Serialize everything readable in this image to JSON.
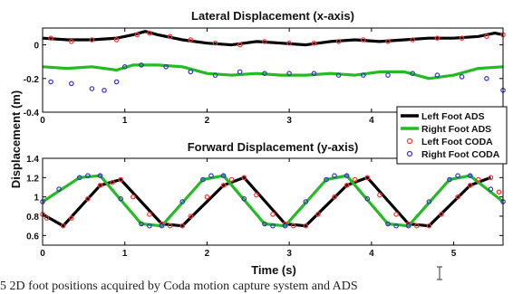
{
  "chart_data": [
    {
      "type": "line",
      "title": "Lateral Displacement (x-axis)",
      "xlabel": "",
      "ylabel": "Displacement (m)",
      "xlim": [
        0,
        5.6
      ],
      "ylim": [
        -0.4,
        0.1
      ],
      "x_ticks": [
        "0",
        "1",
        "2",
        "3",
        "4"
      ],
      "y_ticks": [
        "0",
        "-0.2",
        "-0.4"
      ],
      "grid": false,
      "series": [
        {
          "name": "Left Foot ADS",
          "color": "#000000",
          "style": "line",
          "x": [
            0,
            0.3,
            0.6,
            0.9,
            1.1,
            1.25,
            1.4,
            1.7,
            2.0,
            2.3,
            2.6,
            2.9,
            3.2,
            3.5,
            3.8,
            4.1,
            4.4,
            4.7,
            5.0,
            5.3,
            5.5,
            5.6
          ],
          "y": [
            0.04,
            0.03,
            0.03,
            0.04,
            0.06,
            0.08,
            0.06,
            0.03,
            0.01,
            0.0,
            0.02,
            0.01,
            0.0,
            0.02,
            0.03,
            0.02,
            0.03,
            0.04,
            0.04,
            0.05,
            0.07,
            0.06
          ]
        },
        {
          "name": "Right Foot ADS",
          "color": "#22bb22",
          "style": "line",
          "x": [
            0,
            0.3,
            0.6,
            0.9,
            1.1,
            1.4,
            1.7,
            2.0,
            2.3,
            2.6,
            2.9,
            3.2,
            3.5,
            3.8,
            4.1,
            4.4,
            4.7,
            5.0,
            5.3,
            5.6
          ],
          "y": [
            -0.13,
            -0.14,
            -0.13,
            -0.15,
            -0.12,
            -0.12,
            -0.13,
            -0.17,
            -0.18,
            -0.17,
            -0.18,
            -0.18,
            -0.17,
            -0.18,
            -0.16,
            -0.16,
            -0.2,
            -0.18,
            -0.14,
            -0.13
          ]
        },
        {
          "name": "Left Foot CODA",
          "color": "#ff3333",
          "style": "markers",
          "x": [
            0.1,
            0.35,
            0.6,
            0.9,
            1.15,
            1.3,
            1.55,
            1.8,
            2.1,
            2.4,
            2.7,
            3.0,
            3.3,
            3.6,
            3.9,
            4.2,
            4.5,
            4.8,
            5.1,
            5.4,
            5.6
          ],
          "y": [
            0.04,
            0.02,
            0.03,
            0.03,
            0.06,
            0.07,
            0.05,
            0.03,
            0.01,
            0.0,
            0.02,
            0.01,
            0.01,
            0.02,
            0.03,
            0.02,
            0.03,
            0.04,
            0.04,
            0.05,
            0.06
          ]
        },
        {
          "name": "Right Foot CODA",
          "color": "#3333cc",
          "style": "markers",
          "x": [
            0.1,
            0.35,
            0.6,
            0.75,
            0.9,
            1.0,
            1.2,
            1.5,
            1.8,
            2.1,
            2.4,
            2.7,
            3.0,
            3.3,
            3.6,
            3.9,
            4.2,
            4.5,
            4.8,
            5.1,
            5.4,
            5.6
          ],
          "y": [
            -0.22,
            -0.23,
            -0.26,
            -0.27,
            -0.22,
            -0.13,
            -0.12,
            -0.13,
            -0.16,
            -0.18,
            -0.16,
            -0.17,
            -0.17,
            -0.17,
            -0.18,
            -0.18,
            -0.18,
            -0.17,
            -0.18,
            -0.19,
            -0.2,
            -0.27
          ]
        }
      ]
    },
    {
      "type": "line",
      "title": "Forward Displacement (y-axis)",
      "xlabel": "Time (s)",
      "ylabel": "Displacement (m)",
      "xlim": [
        0,
        5.6
      ],
      "ylim": [
        0.5,
        1.4
      ],
      "x_ticks": [
        "0",
        "1",
        "2",
        "3",
        "4",
        "5"
      ],
      "y_ticks": [
        "1.4",
        "1.2",
        "1",
        "0.8",
        "0.6"
      ],
      "grid": false,
      "series": [
        {
          "name": "Left Foot ADS",
          "color": "#000000",
          "style": "line",
          "x": [
            0.0,
            0.25,
            0.7,
            0.95,
            1.45,
            1.7,
            2.2,
            2.45,
            2.95,
            3.2,
            3.7,
            3.95,
            4.45,
            4.7,
            5.2,
            5.45
          ],
          "y": [
            0.82,
            0.7,
            1.12,
            1.18,
            0.72,
            0.7,
            1.12,
            1.2,
            0.72,
            0.7,
            1.12,
            1.2,
            0.72,
            0.7,
            1.12,
            1.2
          ]
        },
        {
          "name": "Right Foot ADS",
          "color": "#22bb22",
          "style": "line",
          "x": [
            0.0,
            0.45,
            0.7,
            1.2,
            1.45,
            1.95,
            2.2,
            2.7,
            2.95,
            3.45,
            3.7,
            4.2,
            4.45,
            4.95,
            5.2,
            5.6
          ],
          "y": [
            0.95,
            1.2,
            1.22,
            0.72,
            0.7,
            1.18,
            1.22,
            0.72,
            0.7,
            1.18,
            1.22,
            0.72,
            0.7,
            1.18,
            1.22,
            0.95
          ]
        },
        {
          "name": "Left Foot CODA",
          "color": "#ff3333",
          "style": "markers",
          "x": [
            0.0,
            0.05,
            0.25,
            0.35,
            0.55,
            0.7,
            0.85,
            0.95,
            1.1,
            1.3,
            1.45,
            1.55,
            1.7,
            1.8,
            2.0,
            2.2,
            2.3,
            2.45,
            2.6,
            2.8,
            2.95,
            3.05,
            3.2,
            3.35,
            3.55,
            3.7,
            3.8,
            3.95,
            4.1,
            4.3,
            4.45,
            4.55,
            4.7,
            4.85,
            5.05,
            5.2,
            5.3,
            5.45,
            5.55
          ],
          "y": [
            0.82,
            0.78,
            0.7,
            0.78,
            0.98,
            1.12,
            1.15,
            1.18,
            1.0,
            0.82,
            0.72,
            0.7,
            0.7,
            0.8,
            1.0,
            1.12,
            1.18,
            1.2,
            1.02,
            0.82,
            0.72,
            0.7,
            0.7,
            0.82,
            1.0,
            1.12,
            1.18,
            1.2,
            1.02,
            0.82,
            0.72,
            0.7,
            0.7,
            0.82,
            1.0,
            1.12,
            1.18,
            1.2,
            1.05
          ]
        },
        {
          "name": "Right Foot CODA",
          "color": "#3333cc",
          "style": "markers",
          "x": [
            0.0,
            0.2,
            0.45,
            0.55,
            0.7,
            0.95,
            1.2,
            1.3,
            1.45,
            1.7,
            1.95,
            2.05,
            2.2,
            2.45,
            2.7,
            2.8,
            2.95,
            3.2,
            3.45,
            3.55,
            3.7,
            3.95,
            4.2,
            4.3,
            4.45,
            4.7,
            4.95,
            5.05,
            5.2,
            5.45,
            5.6
          ],
          "y": [
            0.95,
            1.08,
            1.2,
            1.22,
            1.22,
            0.98,
            0.72,
            0.7,
            0.7,
            0.95,
            1.18,
            1.22,
            1.22,
            0.98,
            0.72,
            0.7,
            0.7,
            0.95,
            1.18,
            1.22,
            1.22,
            0.98,
            0.72,
            0.7,
            0.7,
            0.95,
            1.18,
            1.22,
            1.22,
            1.08,
            0.95
          ]
        }
      ]
    }
  ],
  "legend": {
    "placement": "right",
    "items": [
      {
        "label": "Left Foot ADS",
        "color": "#000000",
        "kind": "line"
      },
      {
        "label": "Right Foot ADS",
        "color": "#22bb22",
        "kind": "line"
      },
      {
        "label": "Left Foot CODA",
        "color": "#ff3333",
        "kind": "marker"
      },
      {
        "label": "Right Foot CODA",
        "color": "#3333cc",
        "kind": "marker"
      }
    ]
  },
  "caption": "5 2D foot positions acquired by Coda motion capture system and ADS"
}
